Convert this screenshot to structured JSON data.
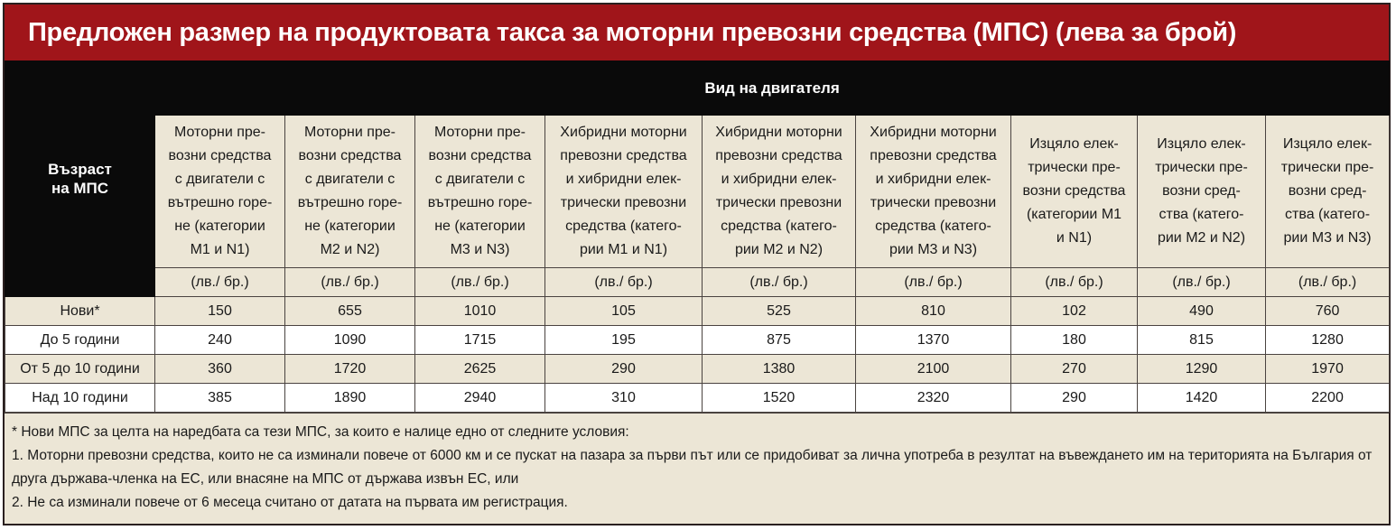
{
  "title": "Предложен размер на продуктовата такса за моторни превозни средства (МПС) (лева за брой)",
  "corner_label": "Възраст\nна МПС",
  "group_label": "Вид на двигателя",
  "columns": [
    "Моторни пре-\nвозни средства\nс двигатели с\nвътрешно горе-\nне (категории\nМ1 и N1)",
    "Моторни пре-\nвозни средства\nс двигатели с\nвътрешно горе-\nне (категории\nМ2 и N2)",
    "Моторни пре-\nвозни средства\nс двигатели с\nвътрешно горе-\nне (категории\nМ3 и N3)",
    "Хибридни моторни\nпревозни средства\nи хибридни елек-\nтрически превозни\nсредства (катего-\nрии М1 и N1)",
    "Хибридни моторни\nпревозни средства\nи хибридни елек-\nтрически превозни\nсредства (катего-\nрии М2 и N2)",
    "Хибридни моторни\nпревозни средства\nи хибридни елек-\nтрически превозни\nсредства (катего-\nрии М3 и N3)",
    "Изцяло елек-\nтрически пре-\nвозни средства\n(категории М1\nи N1)",
    "Изцяло елек-\nтрически пре-\nвозни сред-\nства (катего-\nрии М2 и N2)",
    "Изцяло елек-\nтрически пре-\nвозни сред-\nства (катего-\nрии М3 и N3)"
  ],
  "unit": "(лв./ бр.)",
  "rows": [
    {
      "label": "Нови*",
      "values": [
        "150",
        "655",
        "1010",
        "105",
        "525",
        "810",
        "102",
        "490",
        "760"
      ]
    },
    {
      "label": "До 5 години",
      "values": [
        "240",
        "1090",
        "1715",
        "195",
        "875",
        "1370",
        "180",
        "815",
        "1280"
      ]
    },
    {
      "label": "От 5 до 10 години",
      "values": [
        "360",
        "1720",
        "2625",
        "290",
        "1380",
        "2100",
        "270",
        "1290",
        "1970"
      ]
    },
    {
      "label": "Над 10 години",
      "values": [
        "385",
        "1890",
        "2940",
        "310",
        "1520",
        "2320",
        "290",
        "1420",
        "2200"
      ]
    }
  ],
  "notes": [
    "* Нови МПС за целта на наредбата са тези МПС, за които е налице едно от следните условия:",
    "1. Моторни превозни средства, които не са изминали повече от 6000 км и се пускат на пазара за първи път или се придобиват за лична употреба в резултат на въвеждането им на територията на България от друга държава-членка на ЕС, или внасяне на МПС от държава извън ЕС, или",
    "2. Не са изминали повече от 6 месеца считано от датата на първата им регистрация."
  ],
  "colors": {
    "title_bg": "#a0151a",
    "header_bg": "#0a0a0a",
    "shade_bg": "#ece6d6"
  }
}
